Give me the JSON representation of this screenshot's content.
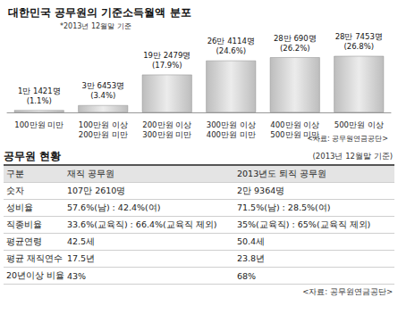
{
  "chart_data": {
    "type": "bar",
    "title": "대한민국 공무원의 기준소득월액 분포",
    "subtitle": "*2013년 12월말 기준",
    "source": "<자료: 공무원연금공단>",
    "categories": [
      "100만원 미만",
      "100만원 이상 200만원 미만",
      "200만원 이상 300만원 미만",
      "300만원 이상 400만원 미만",
      "400만원 이상 500만원 미만",
      "500만원 이상"
    ],
    "values": [
      11421,
      36453,
      192479,
      264114,
      280690,
      287453
    ],
    "value_labels": [
      "1만 1421명 (1.1%)",
      "3만 6453명 (3.4%)",
      "19만 2479명 (17.9%)",
      "26만 4114명 (24.6%)",
      "28만 690명 (26.2%)",
      "28만 7453명 (26.8%)"
    ],
    "color": "#bdbdbd",
    "ylim": [
      0,
      300000
    ],
    "data_labels": true,
    "tick_labels": "x",
    "grid": false
  },
  "table": {
    "title": "공무원 현황",
    "note": "(2013년 12월말 기준)",
    "header": [
      "구분",
      "재직 공무원",
      "2013년도 퇴직 공무원"
    ],
    "rows": [
      [
        "숫자",
        "107만 2610명",
        "2만 9364명"
      ],
      [
        "성비율",
        "57.6%(남) : 42.4%(여)",
        "71.5%(남) : 28.5%(여)"
      ],
      [
        "직종비율",
        "33.6%(교육직) : 66.4%(교육직 제외)",
        "35%(교육직) : 65%(교육직 제외)"
      ],
      [
        "평균연령",
        "42.5세",
        "50.4세"
      ],
      [
        "평균 재직연수",
        "17.5년",
        "23.8년"
      ],
      [
        "20년이상 비율",
        "43%",
        "68%"
      ]
    ],
    "source": "<자료: 공무원연금공단>"
  }
}
